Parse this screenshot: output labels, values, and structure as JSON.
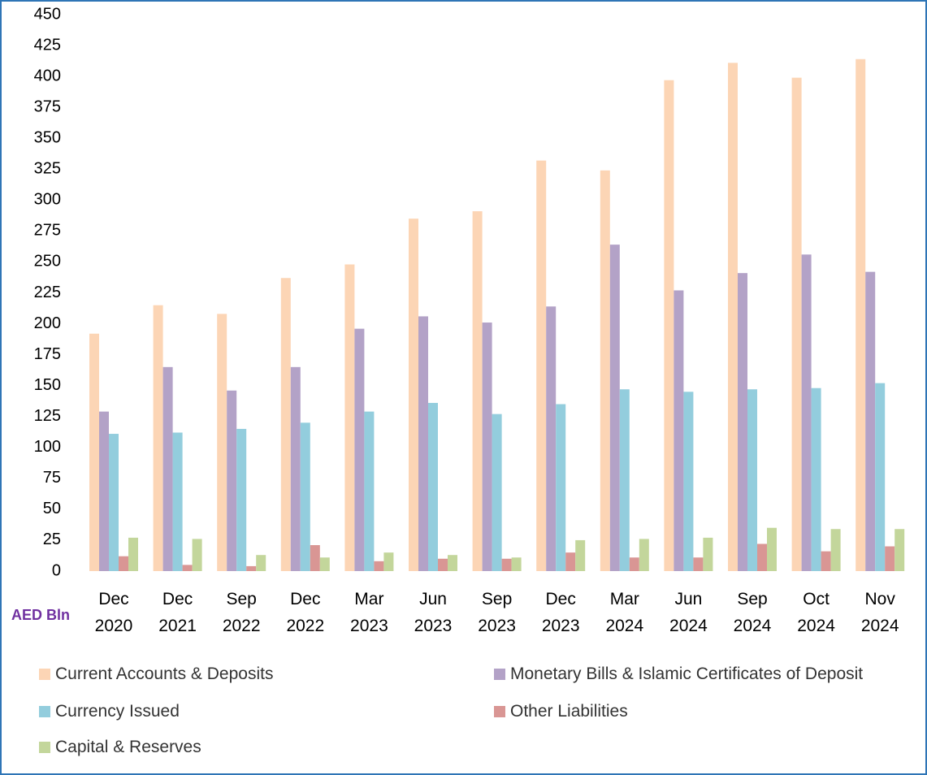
{
  "chart_data": {
    "type": "bar",
    "ylabel": "AED Bln",
    "categories": [
      "Dec 2020",
      "Dec 2021",
      "Sep 2022",
      "Dec 2022",
      "Mar 2023",
      "Jun 2023",
      "Sep 2023",
      "Dec 2023",
      "Mar 2024",
      "Jun 2024",
      "Sep 2024",
      "Oct 2024",
      "Nov 2024"
    ],
    "series": [
      {
        "name": "Current Accounts & Deposits",
        "color": "#fcd5b5",
        "values": [
          192,
          215,
          208,
          237,
          248,
          285,
          291,
          332,
          324,
          397,
          411,
          399,
          414
        ]
      },
      {
        "name": "Monetary Bills & Islamic Certificates of Deposit",
        "color": "#b3a2c7",
        "values": [
          129,
          165,
          146,
          165,
          196,
          206,
          201,
          214,
          264,
          227,
          241,
          256,
          242
        ]
      },
      {
        "name": "Currency Issued",
        "color": "#93cddd",
        "values": [
          111,
          112,
          115,
          120,
          129,
          136,
          127,
          135,
          147,
          145,
          147,
          148,
          152
        ]
      },
      {
        "name": "Other Liabilities",
        "color": "#d99694",
        "values": [
          12,
          5,
          4,
          21,
          8,
          10,
          10,
          15,
          11,
          11,
          22,
          16,
          20
        ]
      },
      {
        "name": "Capital & Reserves",
        "color": "#c3d69b",
        "values": [
          27,
          26,
          13,
          11,
          15,
          13,
          11,
          25,
          26,
          27,
          35,
          34,
          34
        ]
      }
    ],
    "ylim": [
      0,
      450
    ],
    "yticks": [
      0,
      25,
      50,
      75,
      100,
      125,
      150,
      175,
      200,
      225,
      250,
      275,
      300,
      325,
      350,
      375,
      400,
      425,
      450
    ],
    "grid": false,
    "legend": "bottom"
  }
}
